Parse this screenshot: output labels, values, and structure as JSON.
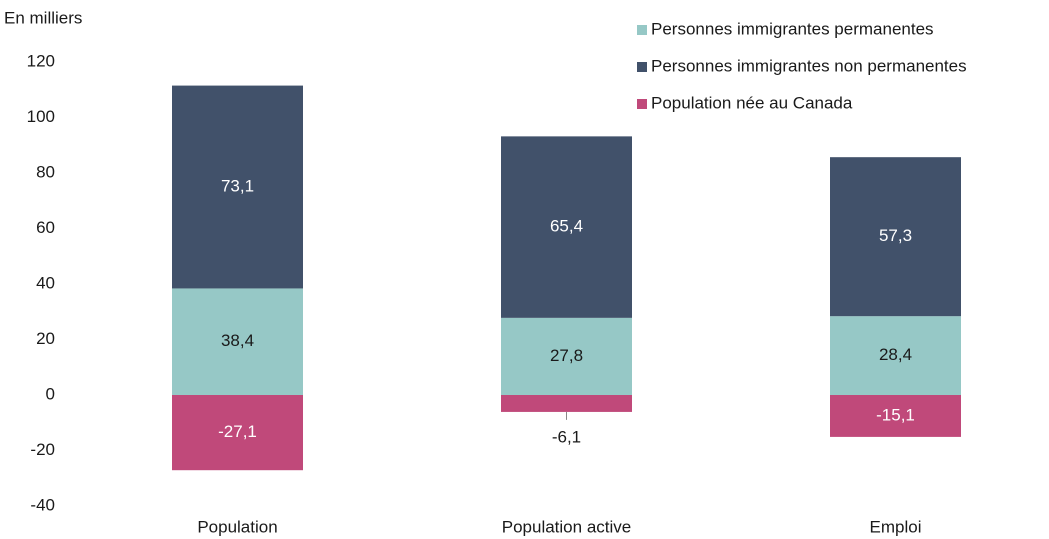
{
  "chart_data": {
    "type": "bar",
    "stacked": true,
    "y_axis_label": "En milliers",
    "categories": [
      "Population",
      "Population active",
      "Emploi"
    ],
    "series": [
      {
        "name": "Personnes immigrantes permanentes",
        "color": "#96c8c6",
        "values": [
          38.4,
          27.8,
          28.4
        ],
        "value_labels": [
          "38,4",
          "27,8",
          "28,4"
        ]
      },
      {
        "name": "Personnes immigrantes non permanentes",
        "color": "#41516a",
        "values": [
          73.1,
          65.4,
          57.3
        ],
        "value_labels": [
          "73,1",
          "65,4",
          "57,3"
        ]
      },
      {
        "name": "Population née au Canada",
        "color": "#c0497a",
        "values": [
          -27.1,
          -6.1,
          -15.1
        ],
        "value_labels": [
          "-27,1",
          "-6,1",
          "-15,1"
        ]
      }
    ],
    "ylim": [
      -40,
      120
    ],
    "yticks": [
      -40,
      -20,
      0,
      20,
      40,
      60,
      80,
      100,
      120
    ],
    "grid": false,
    "legend": "top-right"
  }
}
